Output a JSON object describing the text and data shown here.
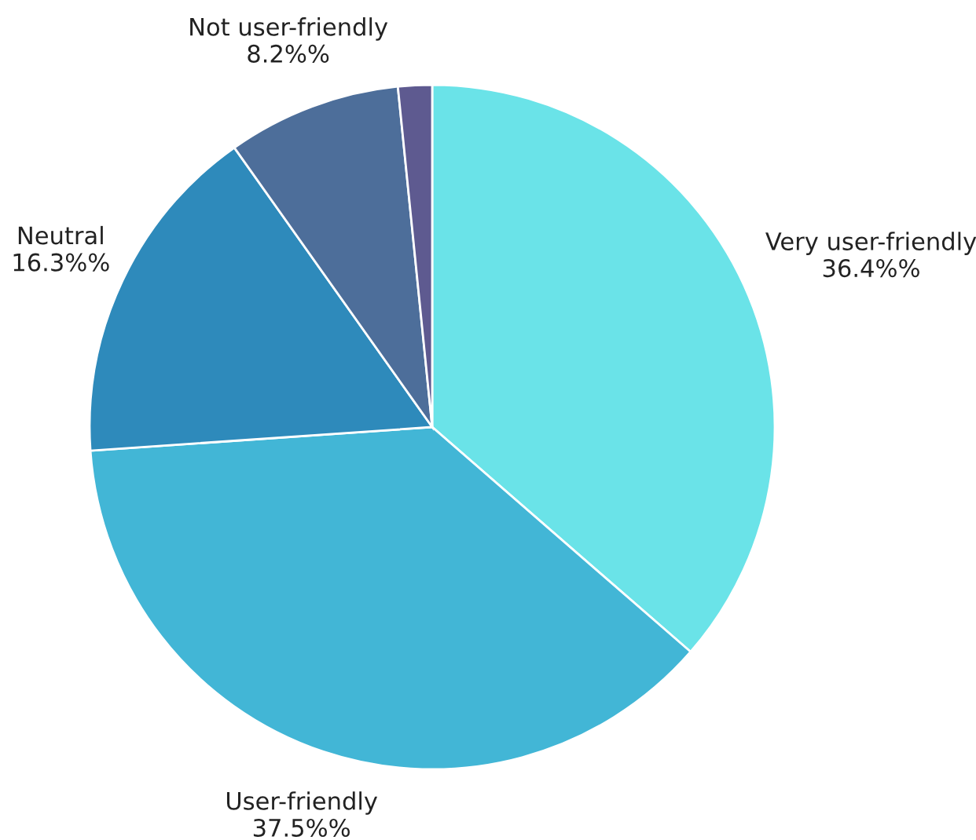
{
  "chart_data": {
    "type": "pie",
    "categories": [
      "Very user-friendly",
      "User-friendly",
      "Neutral",
      "Not user-friendly",
      null
    ],
    "values": [
      36.4,
      37.5,
      16.3,
      8.2,
      1.6
    ],
    "value_labels": [
      "36.4%%",
      "37.5%%",
      "16.3%%",
      "8.2%%",
      null
    ],
    "colors": [
      "#6ae3e8",
      "#42b6d6",
      "#2e8abb",
      "#4d6e9a",
      "#5e5a90"
    ]
  }
}
